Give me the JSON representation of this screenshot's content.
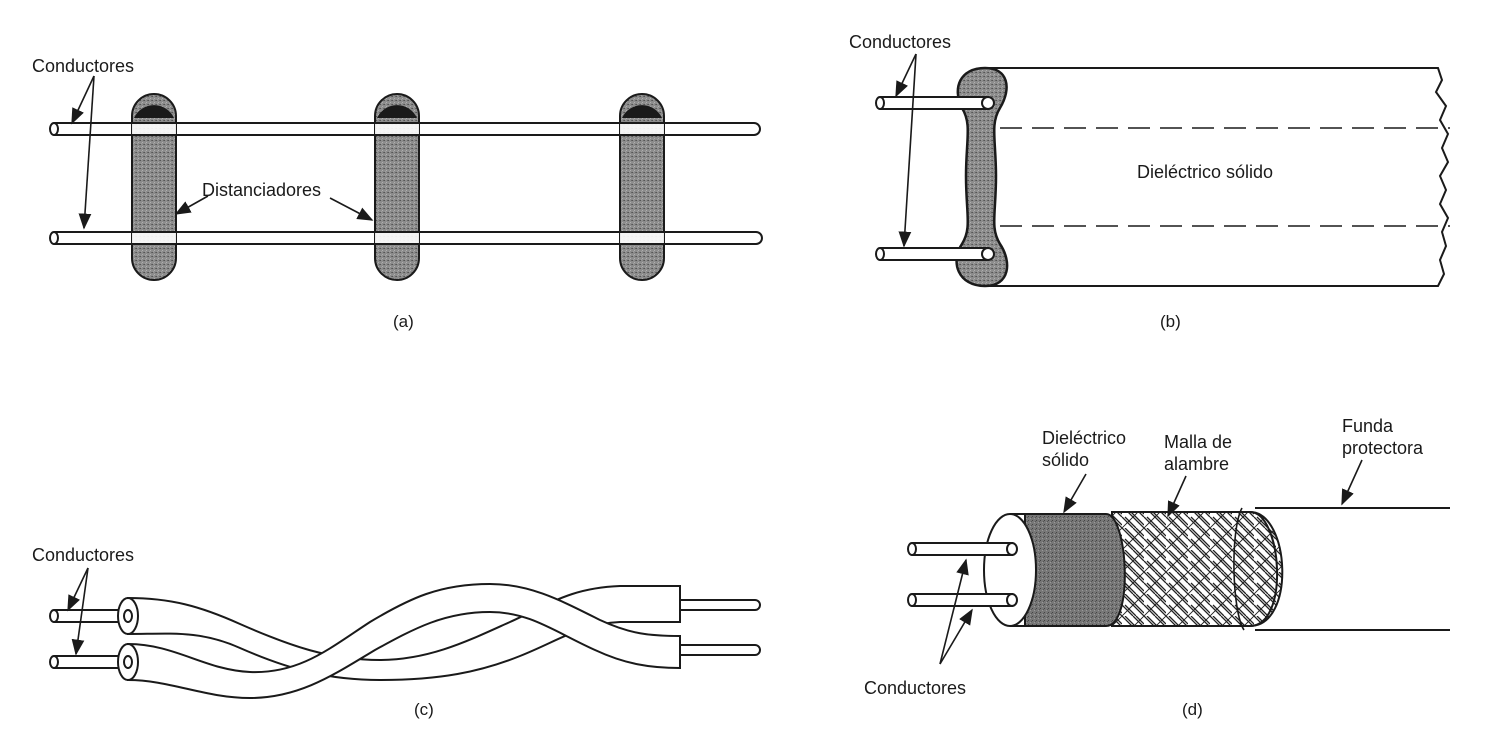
{
  "panel_a": {
    "label_conductores": "Conductores",
    "label_distanciadores": "Distanciadores",
    "caption": "(a)"
  },
  "panel_b": {
    "label_conductores": "Conductores",
    "label_dielectrico": "Dieléctrico sólido",
    "caption": "(b)"
  },
  "panel_c": {
    "label_conductores": "Conductores",
    "caption": "(c)"
  },
  "panel_d": {
    "label_dielectrico_1": "Dieléctrico",
    "label_dielectrico_2": "sólido",
    "label_malla_1": "Malla de",
    "label_malla_2": "alambre",
    "label_funda_1": "Funda",
    "label_funda_2": "protectora",
    "label_conductores": "Conductores",
    "caption": "(d)"
  },
  "colors": {
    "line": "#1a1a1a",
    "spacer_fill": "#8a8a8a",
    "spacer_cap": "#1a1a1a",
    "dielectric_fill": "#7d7d7d",
    "background": "#ffffff"
  }
}
